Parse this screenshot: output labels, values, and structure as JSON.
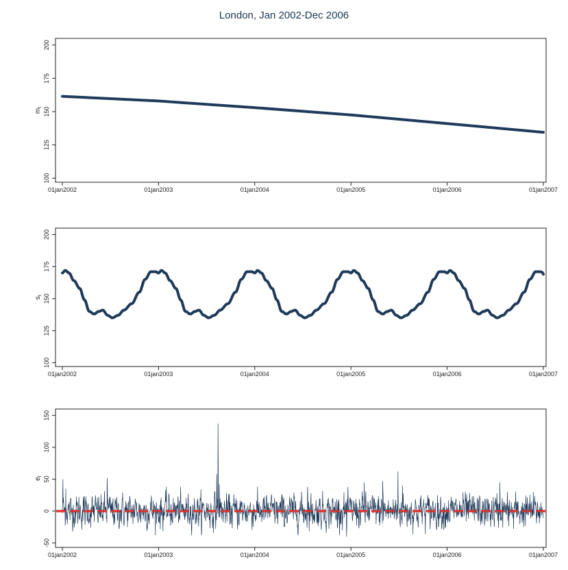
{
  "title": "London, Jan 2002-Dec 2006",
  "chart_data": [
    {
      "type": "line",
      "ylabel": "m",
      "ylabel_sub": "t",
      "yticks": [
        100,
        125,
        150,
        175,
        200
      ],
      "ylim": [
        97,
        205
      ],
      "xticks": [
        "01jan2002",
        "01jan2003",
        "01jan2004",
        "01jan2005",
        "01jan2006",
        "01jan2007"
      ],
      "x": [
        "2002-01-01",
        "2003-01-01",
        "2004-01-01",
        "2005-01-01",
        "2006-01-01",
        "2007-01-01"
      ],
      "series": [
        {
          "values": [
            161.5,
            158.0,
            153.0,
            147.5,
            141.0,
            134.5
          ],
          "color": "#1f3a5a"
        }
      ]
    },
    {
      "type": "line",
      "ylabel": "s",
      "ylabel_sub": "t",
      "yticks": [
        100,
        125,
        150,
        175,
        200
      ],
      "ylim": [
        97,
        205
      ],
      "xticks": [
        "01jan2002",
        "01jan2003",
        "01jan2004",
        "01jan2005",
        "01jan2006",
        "01jan2007"
      ],
      "seasonal_cycle": {
        "period_start": "2002-01-01",
        "cycles": 5,
        "end_value": 169,
        "points": [
          [
            0.0,
            170
          ],
          [
            0.03,
            172
          ],
          [
            0.07,
            170
          ],
          [
            0.12,
            164
          ],
          [
            0.18,
            158
          ],
          [
            0.23,
            149
          ],
          [
            0.28,
            140
          ],
          [
            0.33,
            138
          ],
          [
            0.38,
            140
          ],
          [
            0.42,
            141
          ],
          [
            0.47,
            137
          ],
          [
            0.52,
            135
          ],
          [
            0.58,
            137
          ],
          [
            0.64,
            141
          ],
          [
            0.72,
            146
          ],
          [
            0.8,
            155
          ],
          [
            0.86,
            165
          ],
          [
            0.92,
            171
          ],
          [
            0.97,
            171
          ],
          [
            1.0,
            170
          ]
        ]
      },
      "series": [
        {
          "values": [],
          "color": "#1f3a5a"
        }
      ]
    },
    {
      "type": "line",
      "ylabel": "e",
      "ylabel_sub": "t",
      "yticks": [
        -50,
        0,
        50,
        100,
        150
      ],
      "ylim": [
        -57,
        160
      ],
      "xticks": [
        "01jan2002",
        "01jan2003",
        "01jan2004",
        "01jan2005",
        "01jan2006",
        "01jan2007"
      ],
      "noise": {
        "amplitude": 12,
        "mean": 0
      },
      "spikes": [
        {
          "date": "2002-01-03",
          "value": 50
        },
        {
          "date": "2002-01-14",
          "value": 35
        },
        {
          "date": "2002-06-20",
          "value": 52
        },
        {
          "date": "2003-08-10",
          "value": 58
        },
        {
          "date": "2003-08-15",
          "value": 137
        },
        {
          "date": "2003-08-20",
          "value": 42
        },
        {
          "date": "2004-07-20",
          "value": 38
        },
        {
          "date": "2004-12-15",
          "value": -40
        },
        {
          "date": "2005-02-20",
          "value": 45
        },
        {
          "date": "2005-05-01",
          "value": 47
        },
        {
          "date": "2005-06-28",
          "value": 62
        },
        {
          "date": "2005-07-15",
          "value": 40
        },
        {
          "date": "2006-07-20",
          "value": 45
        },
        {
          "date": "2006-09-10",
          "value": -28
        }
      ],
      "reference_line": {
        "value": 0,
        "color": "#e8352e"
      },
      "series": [
        {
          "values": [],
          "color": "#1f3a5a"
        }
      ]
    }
  ]
}
